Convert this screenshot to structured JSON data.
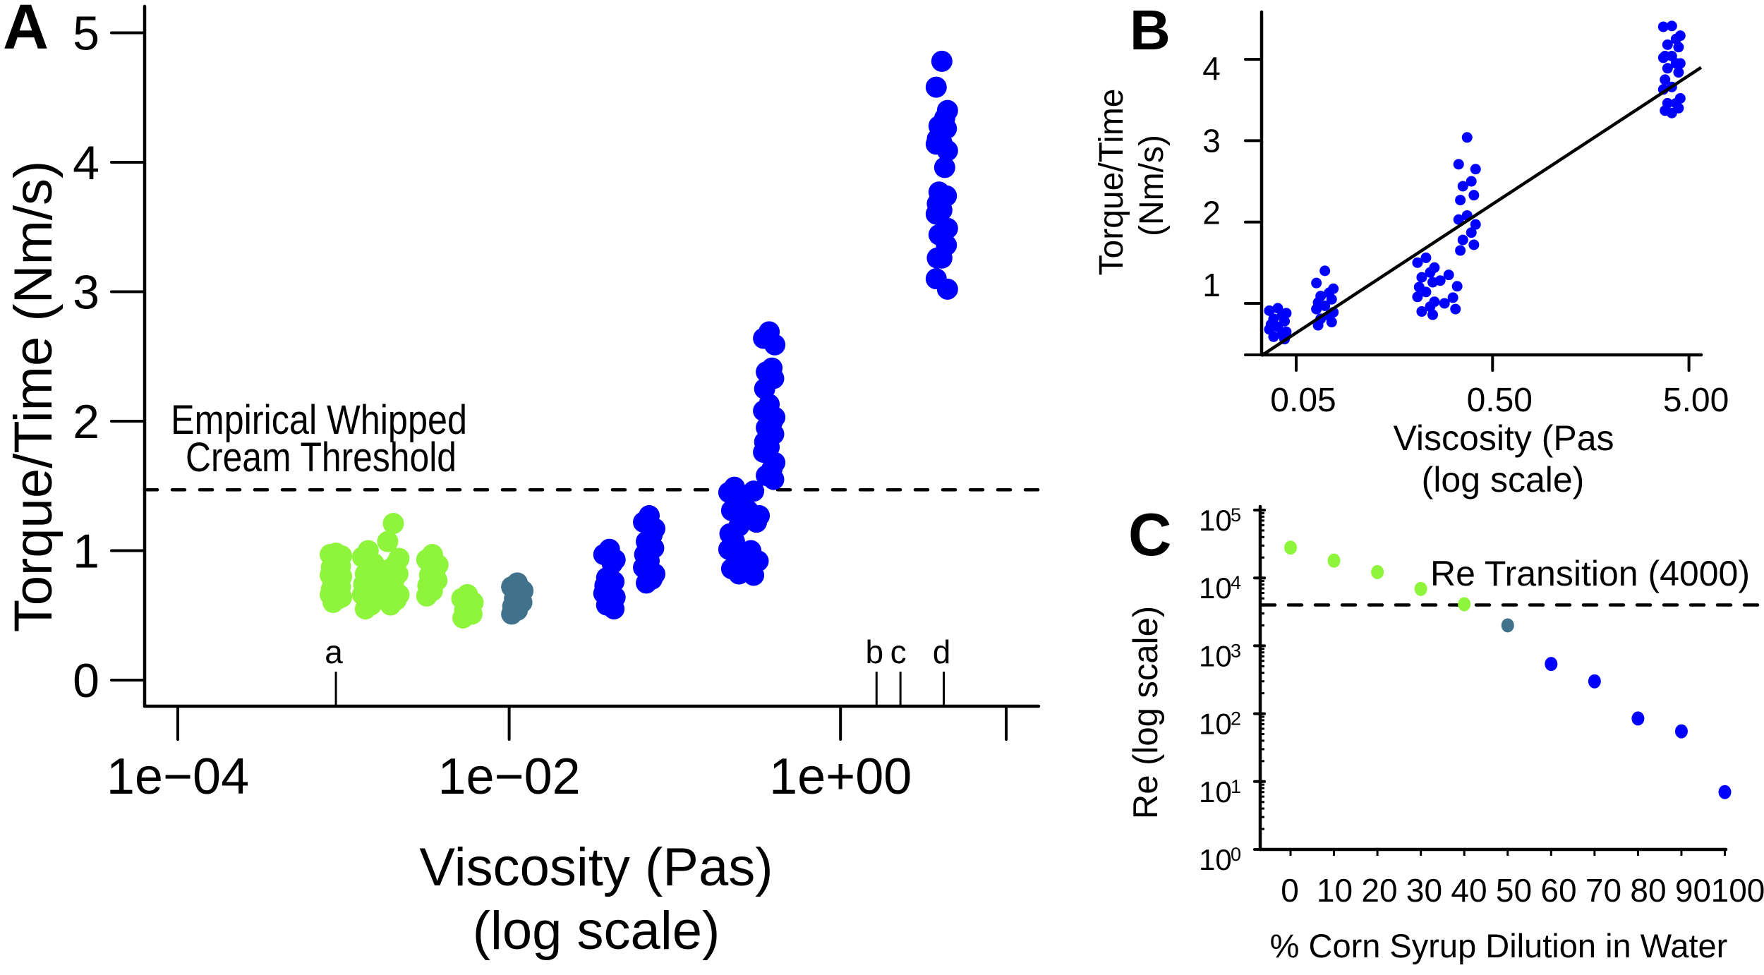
{
  "colors": {
    "green": "#8ef43c",
    "teal": "#41728b",
    "blue": "#0000ff"
  },
  "chart_data": [
    {
      "panel_label": "A",
      "type": "scatter",
      "title": "",
      "xlabel": [
        "Viscosity (Pas)",
        "(log scale)"
      ],
      "ylabel": "Torque/Time (Nm/s)",
      "x_scale": "log10",
      "xlim": [
        6.3e-05,
        16.2
      ],
      "ylim": [
        -0.2,
        5.2
      ],
      "grid": false,
      "legend": "none",
      "x_ticks": [
        {
          "value": 0.0001,
          "label": "1e−04"
        },
        {
          "value": 0.01,
          "label": "1e−02"
        },
        {
          "value": 1,
          "label": "1e+00"
        },
        {
          "value": 10,
          "label": ""
        }
      ],
      "y_ticks": [
        {
          "value": 0,
          "label": "0"
        },
        {
          "value": 1,
          "label": "1"
        },
        {
          "value": 2,
          "label": "2"
        },
        {
          "value": 3,
          "label": "3"
        },
        {
          "value": 4,
          "label": "4"
        },
        {
          "value": 5,
          "label": "5"
        }
      ],
      "threshold": {
        "y": 1.47,
        "style": "dashed",
        "label": [
          "Empirical Whipped",
          "Cream Threshold"
        ]
      },
      "reference_marks": [
        {
          "label": "a",
          "x": 0.0009
        },
        {
          "label": "b",
          "x": 1.65
        },
        {
          "label": "c",
          "x": 2.3
        },
        {
          "label": "d",
          "x": 4.2
        }
      ],
      "series": [
        {
          "group": "green",
          "x": 0.0009,
          "y": [
            0.98,
            0.97,
            0.96,
            0.93,
            0.9,
            0.88,
            0.87,
            0.84,
            0.81,
            0.8,
            0.78,
            0.75,
            0.72,
            0.7,
            0.69,
            0.66,
            0.64,
            0.63,
            0.6
          ]
        },
        {
          "group": "green",
          "x": 0.00141,
          "y": [
            1.0,
            0.95,
            0.9,
            0.86,
            0.82,
            0.78,
            0.74,
            0.7,
            0.66,
            0.62,
            0.58,
            0.55
          ]
        },
        {
          "group": "green",
          "x": 0.002,
          "y": [
            1.21,
            1.07,
            0.94,
            0.9,
            0.86,
            0.82,
            0.78,
            0.74,
            0.7,
            0.66,
            0.62,
            0.58
          ]
        },
        {
          "group": "green",
          "x": 0.00344,
          "y": [
            0.97,
            0.93,
            0.89,
            0.85,
            0.81,
            0.77,
            0.73,
            0.69,
            0.65
          ]
        },
        {
          "group": "green",
          "x": 0.0056,
          "y": [
            0.66,
            0.63,
            0.6,
            0.57,
            0.54,
            0.51,
            0.48
          ]
        },
        {
          "group": "teal",
          "x": 0.0112,
          "y": [
            0.75,
            0.72,
            0.69,
            0.66,
            0.63,
            0.6,
            0.57,
            0.54,
            0.51
          ]
        },
        {
          "group": "blue",
          "x": 0.0403,
          "y": [
            1.01,
            0.97,
            0.93,
            0.9,
            0.79,
            0.76,
            0.73,
            0.7,
            0.67,
            0.64,
            0.61,
            0.58,
            0.55
          ]
        },
        {
          "group": "blue",
          "x": 0.07,
          "y": [
            1.27,
            1.22,
            1.17,
            1.12,
            1.07,
            1.02,
            0.97,
            0.92,
            0.87,
            0.82,
            0.78,
            0.75
          ]
        },
        {
          "group": "blue",
          "x": 0.229,
          "y": [
            1.49,
            1.45,
            1.4,
            1.36,
            1.31,
            1.19,
            1.13,
            1.07,
            1.01,
            0.96,
            0.91,
            0.86,
            0.82
          ]
        },
        {
          "group": "blue",
          "x": 0.299,
          "y": [
            1.46,
            1.31,
            1.27,
            1.22,
            1.0,
            0.92,
            0.87,
            0.81
          ]
        },
        {
          "group": "blue",
          "x": 0.371,
          "y": [
            2.69,
            2.64,
            2.59,
            2.41,
            2.38,
            2.33,
            2.25,
            2.13,
            2.08,
            2.03,
            1.99,
            1.95,
            1.9,
            1.84,
            1.8,
            1.76,
            1.68,
            1.63,
            1.58,
            1.55
          ]
        },
        {
          "group": "blue",
          "x": 4.09,
          "y": [
            4.78,
            4.58,
            4.4,
            4.34,
            4.28,
            4.26,
            4.18,
            4.15,
            4.14,
            4.09,
            3.96,
            3.77,
            3.74,
            3.68,
            3.63,
            3.6,
            3.49,
            3.48,
            3.44,
            3.36,
            3.26,
            3.26,
            3.1,
            3.02
          ]
        }
      ]
    },
    {
      "panel_label": "B",
      "type": "scatter",
      "title": "",
      "xlabel": [
        "Viscosity (Pas",
        "(log scale)"
      ],
      "ylabel": [
        "Torque/Time",
        "(Nm/s)"
      ],
      "x_scale": "log10",
      "xlim": [
        0.0333,
        5.77
      ],
      "ylim": [
        0.37,
        4.58
      ],
      "grid": false,
      "legend": "none",
      "x_ticks": [
        {
          "value": 0.05,
          "label": "0.05"
        },
        {
          "value": 0.5,
          "label": "0.50"
        },
        {
          "value": 5,
          "label": "5.00"
        }
      ],
      "y_ticks": [
        {
          "value": 1,
          "label": "1"
        },
        {
          "value": 2,
          "label": "2"
        },
        {
          "value": 3,
          "label": "3"
        },
        {
          "value": 4,
          "label": "4"
        }
      ],
      "fit_line": {
        "type": "linear-in-log10(x)",
        "intercept": 2.69,
        "slope_per_decade": 1.59
      },
      "series": [
        {
          "group": "blue",
          "x": 0.0403,
          "y": [
            0.94,
            0.91,
            0.88,
            0.85,
            0.81,
            0.78,
            0.74,
            0.71,
            0.68,
            0.65,
            0.62,
            0.59,
            0.56
          ]
        },
        {
          "group": "blue",
          "x": 0.07,
          "y": [
            1.4,
            1.25,
            1.18,
            1.13,
            1.09,
            1.05,
            1.01,
            0.97,
            0.93,
            0.89,
            0.85,
            0.81,
            0.77,
            0.73
          ]
        },
        {
          "group": "blue",
          "x": 0.229,
          "y": [
            1.56,
            1.5,
            1.44,
            1.38,
            1.32,
            1.26,
            1.2,
            1.14,
            1.08,
            1.02,
            0.96,
            0.9,
            0.86
          ]
        },
        {
          "group": "blue",
          "x": 0.299,
          "y": [
            1.35,
            1.28,
            1.21,
            1.07,
            1.0,
            0.93
          ]
        },
        {
          "group": "blue",
          "x": 0.371,
          "y": [
            3.04,
            2.71,
            2.65,
            2.5,
            2.44,
            2.33,
            2.27,
            2.08,
            2.03,
            1.97,
            1.87,
            1.78,
            1.72,
            1.65
          ]
        },
        {
          "group": "blue",
          "x": 4.09,
          "y": [
            4.41,
            4.4,
            4.29,
            4.25,
            4.18,
            4.15,
            4.04,
            4.04,
            4.02,
            3.95,
            3.95,
            3.89,
            3.84,
            3.75,
            3.66,
            3.63,
            3.52,
            3.46,
            3.46,
            3.4,
            3.37,
            3.34
          ]
        }
      ]
    },
    {
      "panel_label": "C",
      "type": "scatter",
      "title": "",
      "xlabel": "% Corn Syrup Dilution in Water",
      "ylabel": "Re (log scale)",
      "y_scale": "log10",
      "xlim": [
        -7,
        100
      ],
      "ylim": [
        1,
        100000
      ],
      "grid": false,
      "legend": "none",
      "x_ticks": [
        {
          "value": 0,
          "label": "0"
        },
        {
          "value": 10,
          "label": "10"
        },
        {
          "value": 20,
          "label": "20"
        },
        {
          "value": 30,
          "label": "30"
        },
        {
          "value": 40,
          "label": "40"
        },
        {
          "value": 50,
          "label": "50"
        },
        {
          "value": 60,
          "label": "60"
        },
        {
          "value": 70,
          "label": "70"
        },
        {
          "value": 80,
          "label": "80"
        },
        {
          "value": 90,
          "label": "90"
        },
        {
          "value": 100,
          "label": "100"
        }
      ],
      "y_ticks": [
        {
          "value": 1,
          "base": "10",
          "exponent": "0"
        },
        {
          "value": 10,
          "base": "10",
          "exponent": "1"
        },
        {
          "value": 100,
          "base": "10",
          "exponent": "2"
        },
        {
          "value": 1000,
          "base": "10",
          "exponent": "3"
        },
        {
          "value": 10000,
          "base": "10",
          "exponent": "4"
        },
        {
          "value": 100000,
          "base": "10",
          "exponent": "5"
        }
      ],
      "threshold": {
        "y": 4000,
        "style": "dashed",
        "label": "Re Transition (4000)"
      },
      "points": [
        {
          "x": 0,
          "y": 28000,
          "group": "green"
        },
        {
          "x": 10,
          "y": 18000,
          "group": "green"
        },
        {
          "x": 20,
          "y": 12200,
          "group": "green"
        },
        {
          "x": 30,
          "y": 6900,
          "group": "green"
        },
        {
          "x": 40,
          "y": 4100,
          "group": "green"
        },
        {
          "x": 50,
          "y": 2000,
          "group": "teal"
        },
        {
          "x": 60,
          "y": 540,
          "group": "blue"
        },
        {
          "x": 70,
          "y": 300,
          "group": "blue"
        },
        {
          "x": 80,
          "y": 85,
          "group": "blue"
        },
        {
          "x": 90,
          "y": 55,
          "group": "blue"
        },
        {
          "x": 100,
          "y": 7,
          "group": "blue"
        }
      ]
    }
  ]
}
